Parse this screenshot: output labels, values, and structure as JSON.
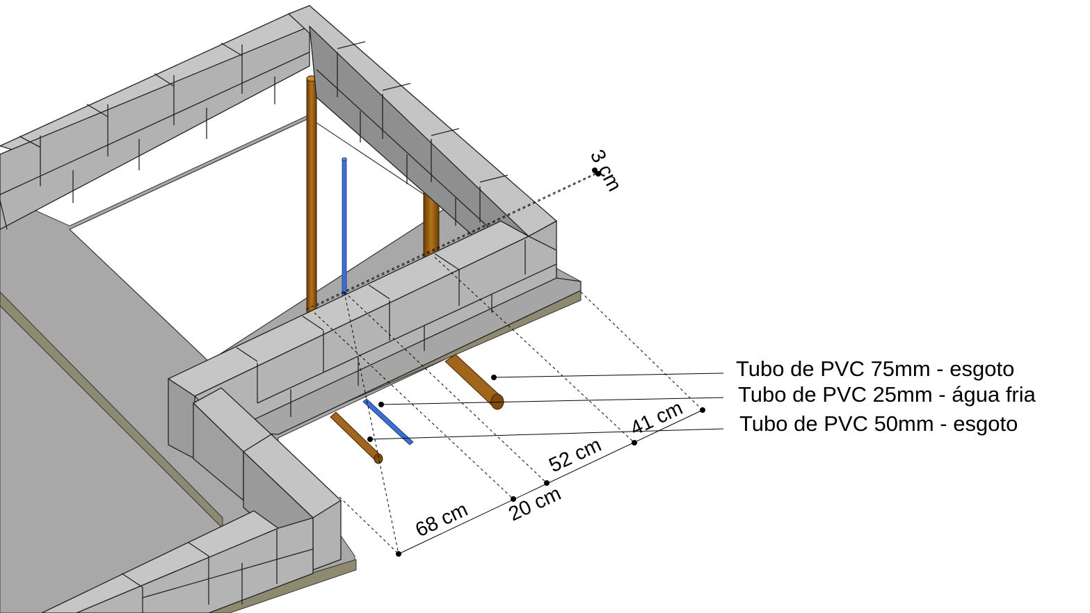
{
  "labels": {
    "pipe_75": "Tubo de PVC 75mm - esgoto",
    "pipe_25": "Tubo de PVC 25mm - água fria",
    "pipe_50": "Tubo de PVC 50mm - esgoto"
  },
  "dimensions": {
    "d68": "68 cm",
    "d20": "20 cm",
    "d52": "52 cm",
    "d41": "41 cm",
    "d3": "3 cm"
  },
  "colors": {
    "block_top": "#c8c8c8",
    "block_face": "#b4b4b4",
    "block_dark": "#8c8c8c",
    "slab": "#a9a9a9",
    "slab_edge": "#8a8a7a",
    "pipe_sewer": "#9a5e14",
    "pipe_water": "#3b6fd1"
  }
}
